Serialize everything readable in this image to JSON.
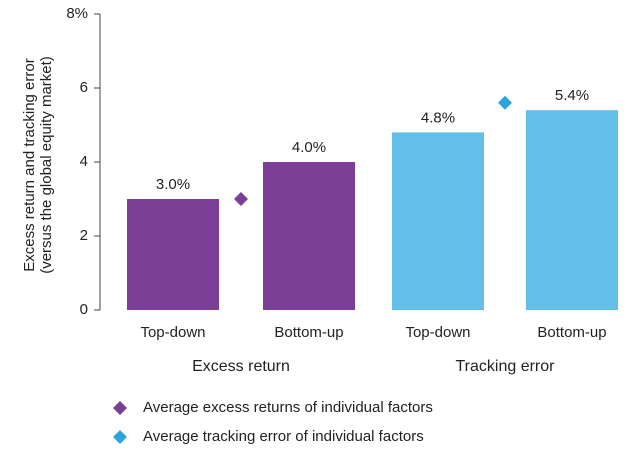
{
  "chart_data": {
    "type": "bar",
    "ylabel": [
      "Excess return and tracking error",
      "(versus the global equity market)"
    ],
    "categories": [
      "Top-down",
      "Bottom-up",
      "Top-down",
      "Bottom-up"
    ],
    "groups": [
      "Excess return",
      "Tracking error"
    ],
    "values": [
      3.0,
      4.0,
      4.8,
      5.4
    ],
    "value_labels": [
      "3.0%",
      "4.0%",
      "4.8%",
      "5.4%"
    ],
    "colors": [
      "#7b3f98",
      "#7b3f98",
      "#64bfe8",
      "#64bfe8"
    ],
    "markers": [
      {
        "name": "Average excess returns of individual factors",
        "color": "#7b3f98",
        "value": 3.0
      },
      {
        "name": "Average tracking error of individual factors",
        "color": "#2ca5dc",
        "value": 5.6
      }
    ],
    "ylim": [
      0,
      8
    ],
    "yticks": [
      0,
      2,
      4,
      6,
      {
        "value": 8,
        "label": "8%"
      }
    ]
  }
}
